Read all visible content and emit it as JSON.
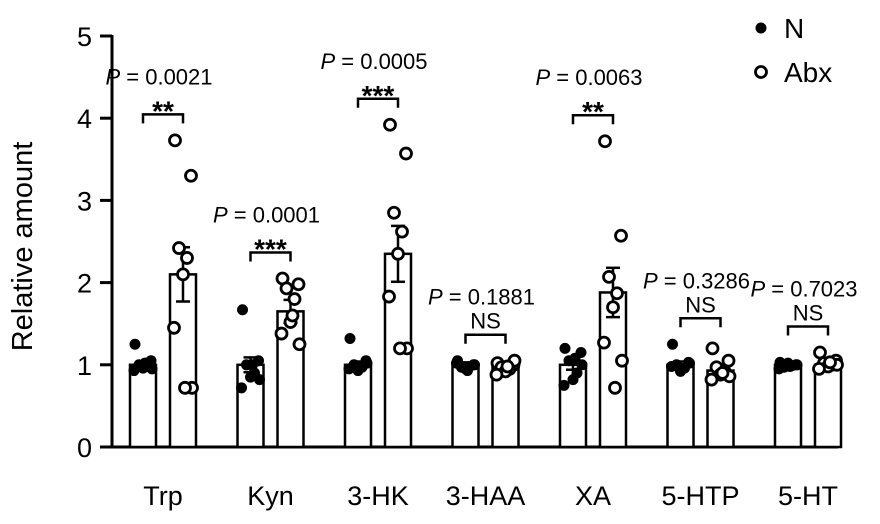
{
  "chart_data": {
    "type": "bar",
    "ylabel": "Relative amount",
    "ylim": [
      0,
      5
    ],
    "yticks": [
      0,
      1,
      2,
      3,
      4,
      5
    ],
    "categories": [
      "Trp",
      "Kyn",
      "3-HK",
      "3-HAA",
      "XA",
      "5-HTP",
      "5-HT"
    ],
    "series": [
      {
        "name": "N",
        "marker": "filled",
        "values": [
          1.0,
          1.0,
          1.0,
          1.0,
          1.0,
          1.0,
          1.0
        ],
        "sem": [
          0.04,
          0.09,
          0.04,
          0.03,
          0.06,
          0.04,
          0.02
        ],
        "points": [
          [
            1.25,
            1.05,
            1.0,
            0.98,
            0.96,
            0.93,
            0.95,
            1.02
          ],
          [
            1.67,
            1.05,
            1.0,
            0.9,
            0.85,
            0.72,
            0.82,
            1.0
          ],
          [
            1.32,
            1.05,
            1.0,
            0.97,
            0.93,
            0.95,
            1.02,
            0.98
          ],
          [
            1.05,
            1.0,
            0.97,
            0.98,
            0.95,
            1.02,
            1.0,
            0.93
          ],
          [
            1.2,
            1.15,
            1.05,
            0.9,
            0.82,
            0.75,
            1.0,
            1.08
          ],
          [
            1.25,
            1.03,
            1.0,
            0.96,
            0.92,
            0.98,
            1.02,
            0.95
          ],
          [
            1.03,
            1.0,
            0.97,
            0.99,
            1.02,
            0.95,
            1.0,
            0.98
          ]
        ]
      },
      {
        "name": "Abx",
        "marker": "open",
        "values": [
          2.1,
          1.65,
          2.35,
          0.97,
          1.88,
          0.93,
          1.0
        ],
        "sem": [
          0.33,
          0.14,
          0.34,
          0.03,
          0.3,
          0.04,
          0.03
        ],
        "points": [
          [
            3.73,
            3.3,
            2.42,
            2.3,
            2.1,
            1.45,
            0.72,
            0.72
          ],
          [
            2.05,
            1.98,
            1.93,
            1.8,
            1.52,
            1.38,
            1.25,
            1.6
          ],
          [
            3.92,
            3.57,
            2.85,
            2.62,
            2.35,
            1.83,
            1.2,
            1.2
          ],
          [
            1.02,
            1.0,
            0.97,
            0.95,
            0.92,
            0.88,
            1.05,
            0.98
          ],
          [
            3.72,
            2.57,
            2.07,
            1.87,
            1.7,
            1.27,
            1.05,
            0.72
          ],
          [
            1.2,
            1.05,
            0.97,
            0.92,
            0.88,
            0.82,
            0.86,
            0.9
          ],
          [
            1.15,
            1.05,
            1.02,
            1.0,
            0.98,
            0.95,
            1.0,
            1.03
          ]
        ]
      }
    ],
    "annotations": [
      {
        "category": "Trp",
        "p": "= 0.0021",
        "sig": "**"
      },
      {
        "category": "Kyn",
        "p": "= 0.0001",
        "sig": "***"
      },
      {
        "category": "3-HK",
        "p": "= 0.0005",
        "sig": "***"
      },
      {
        "category": "3-HAA",
        "p": "= 0.1881",
        "sig": "NS"
      },
      {
        "category": "XA",
        "p": "= 0.0063",
        "sig": "**"
      },
      {
        "category": "5-HTP",
        "p": "= 0.3286",
        "sig": "NS"
      },
      {
        "category": "5-HT",
        "p": "= 0.7023",
        "sig": "NS"
      }
    ],
    "p_symbol": "P",
    "legend": {
      "position": "top-right",
      "entries": [
        {
          "label": "N",
          "marker": "filled"
        },
        {
          "label": "Abx",
          "marker": "open"
        }
      ]
    },
    "grid": false
  }
}
